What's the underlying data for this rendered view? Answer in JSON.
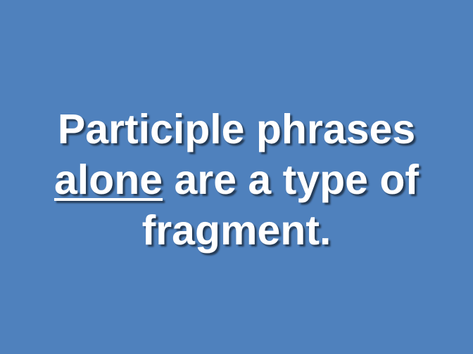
{
  "slide": {
    "background_color": "#4f81bd",
    "text_color": "#ffffff",
    "line1": "Participle phrases",
    "line2_underlined": "alone",
    "line2_rest": " are a type of",
    "line3": "fragment."
  }
}
